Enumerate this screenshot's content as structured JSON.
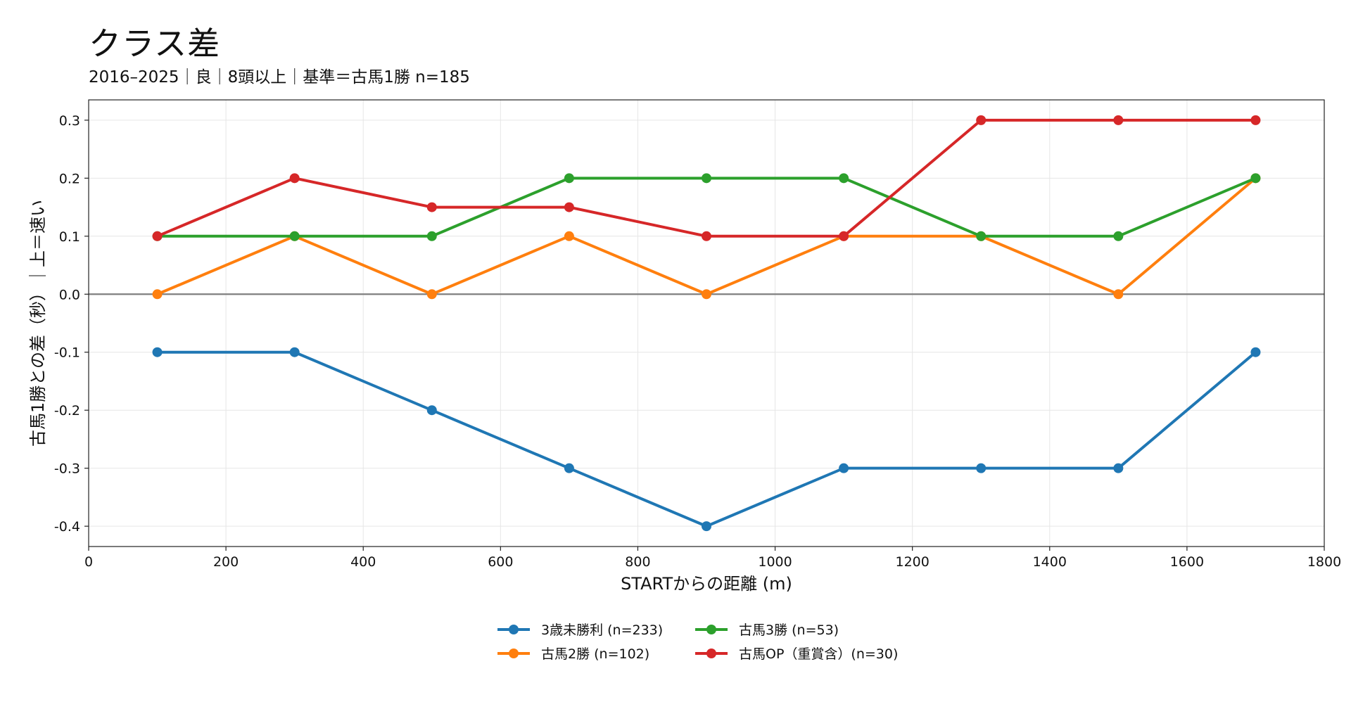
{
  "chart_data": {
    "type": "line",
    "title": "クラス差",
    "subtitle": "2016–2025｜良｜8頭以上｜基準＝古馬1勝 n=185",
    "xlabel": "STARTからの距離 (m)",
    "ylabel": "古馬1勝との差（秒）｜上＝速い",
    "xlim": [
      0,
      1800
    ],
    "ylim": [
      -0.435,
      0.335
    ],
    "x_ticks": [
      0,
      200,
      400,
      600,
      800,
      1000,
      1200,
      1400,
      1600,
      1800
    ],
    "y_ticks": [
      -0.4,
      -0.3,
      -0.2,
      -0.1,
      0.0,
      0.1,
      0.2,
      0.3
    ],
    "y_tick_labels": [
      "-0.4",
      "-0.3",
      "-0.2",
      "-0.1",
      "0.0",
      "0.1",
      "0.2",
      "0.3"
    ],
    "x_tick_labels": [
      "0",
      "200",
      "400",
      "600",
      "800",
      "1000",
      "1200",
      "1400",
      "1600",
      "1800"
    ],
    "grid": true,
    "reference_line": 0.0,
    "legend_position": "bottom-center",
    "x": [
      100,
      300,
      500,
      700,
      900,
      1100,
      1300,
      1500,
      1700
    ],
    "series": [
      {
        "name": "3歳未勝利 (n=233)",
        "color": "#1f77b4",
        "values": [
          -0.1,
          -0.1,
          -0.2,
          -0.3,
          -0.4,
          -0.3,
          -0.3,
          -0.3,
          -0.1
        ]
      },
      {
        "name": "古馬2勝 (n=102)",
        "color": "#ff7f0e",
        "values": [
          0.0,
          0.1,
          0.0,
          0.1,
          0.0,
          0.1,
          0.1,
          0.0,
          0.2
        ]
      },
      {
        "name": "古馬3勝 (n=53)",
        "color": "#2ca02c",
        "values": [
          0.1,
          0.1,
          0.1,
          0.2,
          0.2,
          0.2,
          0.1,
          0.1,
          0.2
        ]
      },
      {
        "name": "古馬OP（重賞含）(n=30)",
        "color": "#d62728",
        "values": [
          0.1,
          0.2,
          0.15,
          0.15,
          0.1,
          0.1,
          0.3,
          0.3,
          0.3
        ]
      }
    ]
  }
}
